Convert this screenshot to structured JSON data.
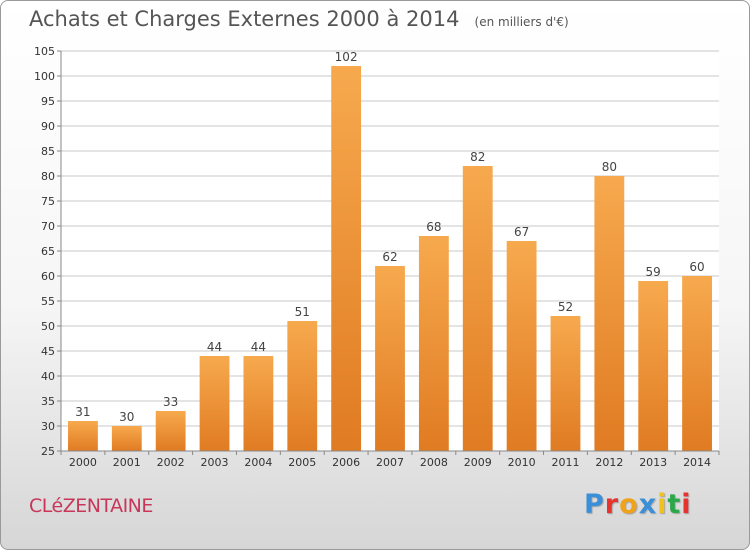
{
  "header": {
    "title": "Achats et Charges Externes 2000 à 2014",
    "subtitle": "(en milliers d'€)"
  },
  "footer": {
    "commune": "CLéZENTAINE",
    "brand": "Proxiti",
    "brand_colors": [
      "#3a8fd8",
      "#e8322e",
      "#f0a21a",
      "#3a8fd8",
      "#f0c21a",
      "#2aa84a",
      "#e8322e"
    ]
  },
  "colors": {
    "bar_light": "#f7a94e",
    "bar_dark": "#e07b22",
    "grid": "#c8c8c8",
    "title": "#555555",
    "commune": "#c8375a"
  },
  "chart_data": {
    "type": "bar",
    "title": "Achats et Charges Externes 2000 à 2014",
    "subtitle": "(en milliers d'€)",
    "categories": [
      "2000",
      "2001",
      "2002",
      "2003",
      "2004",
      "2005",
      "2006",
      "2007",
      "2008",
      "2009",
      "2010",
      "2011",
      "2012",
      "2013",
      "2014"
    ],
    "values": [
      31,
      30,
      33,
      44,
      44,
      51,
      102,
      62,
      68,
      82,
      67,
      52,
      80,
      59,
      60
    ],
    "ylim": [
      25,
      105
    ],
    "yticks": [
      25,
      30,
      35,
      40,
      45,
      50,
      55,
      60,
      65,
      70,
      75,
      80,
      85,
      90,
      95,
      100,
      105
    ],
    "grid": true,
    "data_labels": true
  }
}
